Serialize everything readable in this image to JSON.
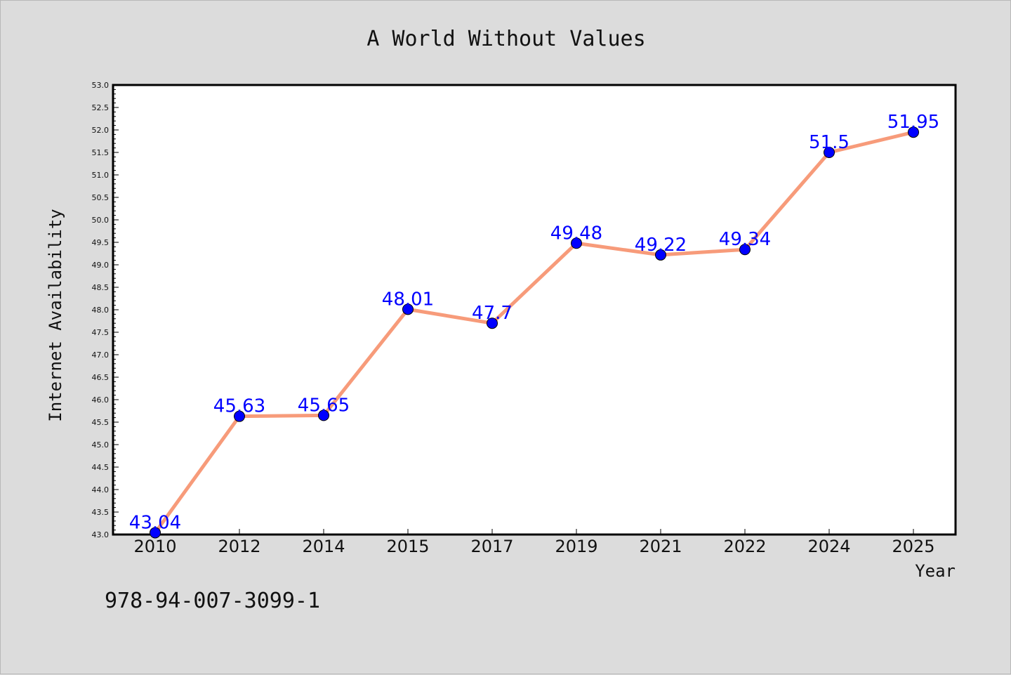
{
  "chart_data": {
    "type": "line",
    "title": "A World Without Values",
    "xlabel": "Year",
    "ylabel": "Internet Availability",
    "categories": [
      "2010",
      "2012",
      "2014",
      "2015",
      "2017",
      "2019",
      "2021",
      "2022",
      "2024",
      "2025"
    ],
    "series": [
      {
        "values": [
          43.04,
          45.63,
          45.65,
          48.01,
          47.7,
          49.48,
          49.22,
          49.34,
          51.5,
          51.95
        ],
        "data_labels": [
          "43.04",
          "45.63",
          "45.65",
          "48.01",
          "47.7",
          "49.48",
          "49.22",
          "49.34",
          "51.5",
          "51.95"
        ],
        "line_color": "#f79b7a",
        "marker_color": "#0000ff"
      }
    ],
    "ylim": [
      43.0,
      53.0
    ],
    "yticks": [
      "43.0",
      "43.5",
      "44.0",
      "44.5",
      "45.0",
      "45.5",
      "46.0",
      "46.5",
      "47.0",
      "47.5",
      "48.0",
      "48.5",
      "49.0",
      "49.5",
      "50.0",
      "50.5",
      "51.0",
      "51.5",
      "52.0",
      "52.5",
      "53.0"
    ],
    "grid": false,
    "legend": "none"
  },
  "footer_text": "978-94-007-3099-1",
  "colors": {
    "background": "#dcdcdc",
    "plot_background": "#ffffff",
    "line": "#f79b7a",
    "marker": "#0000ff",
    "data_label": "#0000ff"
  }
}
